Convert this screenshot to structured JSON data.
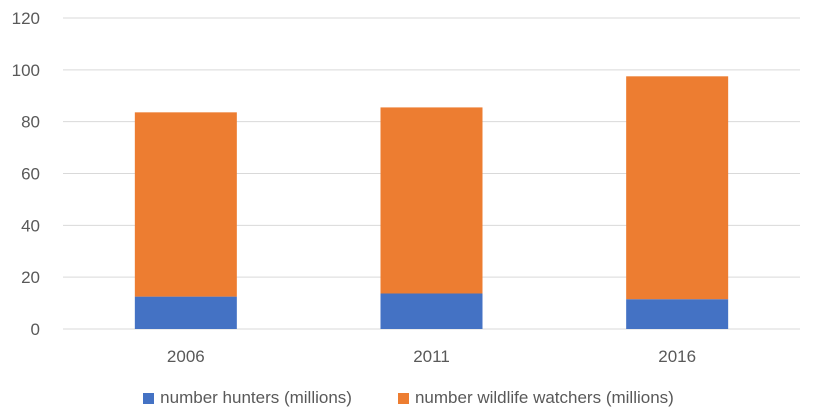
{
  "chart_data": {
    "type": "bar",
    "stacked": true,
    "categories": [
      "2006",
      "2011",
      "2016"
    ],
    "series": [
      {
        "name": "number hunters (millions)",
        "values": [
          12.5,
          13.7,
          11.5
        ],
        "color": "#4472C4"
      },
      {
        "name": "number wildlife watchers (millions)",
        "values": [
          71.1,
          71.8,
          86.0
        ],
        "color": "#ED7D31"
      }
    ],
    "yticks": [
      "0",
      "20",
      "40",
      "60",
      "80",
      "100",
      "120"
    ],
    "ylim": [
      0,
      120
    ],
    "grid": true,
    "legend_position": "bottom"
  }
}
